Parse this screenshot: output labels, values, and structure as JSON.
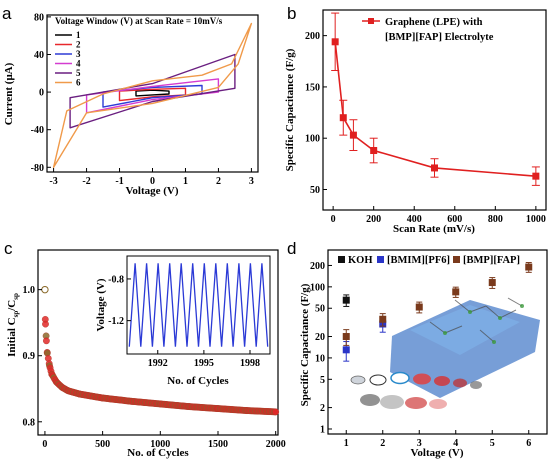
{
  "panels": {
    "a": "a",
    "b": "b",
    "c": "c",
    "d": "d"
  },
  "chart_data": [
    {
      "type": "line",
      "panel": "a",
      "title": "Voltage Window (V) at Scan Rate = 10mV/s",
      "xlabel": "Voltage (V)",
      "ylabel": "Current (μA)",
      "xlim": [
        -3.2,
        3.2
      ],
      "ylim": [
        -85,
        82
      ],
      "xticks": [
        "-3",
        "-2",
        "-1",
        "0",
        "1",
        "2",
        "3"
      ],
      "yticks": [
        "-80",
        "-40",
        "0",
        "40",
        "80"
      ],
      "legend_position": "top-left",
      "series": [
        {
          "name": "1",
          "color": "#000000",
          "vmin": -0.5,
          "vmax": 0.5,
          "points": [
            [
              -0.5,
              -4
            ],
            [
              0,
              -3
            ],
            [
              0.5,
              -2
            ],
            [
              0.5,
              1
            ],
            [
              0,
              2
            ],
            [
              -0.5,
              1
            ]
          ]
        },
        {
          "name": "2",
          "color": "#e8282c",
          "vmin": -1.0,
          "vmax": 1.0,
          "points": [
            [
              -1,
              -9
            ],
            [
              0,
              -5
            ],
            [
              1,
              -3
            ],
            [
              1,
              4
            ],
            [
              0,
              3
            ],
            [
              -1,
              1
            ]
          ]
        },
        {
          "name": "3",
          "color": "#2e3bd6",
          "vmin": -1.5,
          "vmax": 1.5,
          "points": [
            [
              -1.5,
              -16
            ],
            [
              0,
              -6
            ],
            [
              1.5,
              -2
            ],
            [
              1.5,
              7
            ],
            [
              0,
              5
            ],
            [
              -1.5,
              0
            ]
          ]
        },
        {
          "name": "4",
          "color": "#d43cd0",
          "vmin": -2.0,
          "vmax": 2.0,
          "points": [
            [
              -2,
              -22
            ],
            [
              0,
              -8
            ],
            [
              2,
              0
            ],
            [
              2,
              14
            ],
            [
              0,
              6
            ],
            [
              -2,
              -3
            ]
          ]
        },
        {
          "name": "5",
          "color": "#6a1f80",
          "vmin": -2.5,
          "vmax": 2.5,
          "points": [
            [
              -2.5,
              -38
            ],
            [
              0,
              -10
            ],
            [
              2.5,
              4
            ],
            [
              2.5,
              40
            ],
            [
              0,
              9
            ],
            [
              -2.5,
              -6
            ]
          ]
        },
        {
          "name": "6",
          "color": "#f09a4a",
          "vmin": -3.0,
          "vmax": 3.0,
          "points": [
            [
              -3,
              -80
            ],
            [
              -2,
              -22
            ],
            [
              0,
              -12
            ],
            [
              2,
              5
            ],
            [
              2.6,
              30
            ],
            [
              3,
              73
            ],
            [
              2.4,
              30
            ],
            [
              1.5,
              18
            ],
            [
              0,
              12
            ],
            [
              -1.5,
              -2
            ],
            [
              -2.6,
              -20
            ]
          ]
        }
      ]
    },
    {
      "type": "line",
      "panel": "b",
      "xlabel": "Scan Rate (mV/s)",
      "ylabel": "Specific Capacitance (F/g)",
      "xlim": [
        -50,
        1050
      ],
      "ylim": [
        30,
        225
      ],
      "xticks": [
        "0",
        "200",
        "400",
        "600",
        "800",
        "1000"
      ],
      "yticks": [
        "50",
        "100",
        "150",
        "200"
      ],
      "legend_position": "top-right",
      "color": "#e02020",
      "series": [
        {
          "name": "Graphene (LPE) with [BMP][FAP] Electrolyte",
          "x": [
            10,
            50,
            100,
            200,
            500,
            1000
          ],
          "y": [
            194,
            120,
            103,
            88,
            71,
            63
          ],
          "err": [
            28,
            17,
            15,
            12,
            9,
            9
          ]
        }
      ]
    },
    {
      "type": "scatter",
      "panel": "c",
      "xlabel": "No. of Cycles",
      "ylabel": "Initial Csp/Csp",
      "ylabel_parts": [
        "Initial C",
        "sp",
        "/C",
        "sp"
      ],
      "xlim": [
        -60,
        2020
      ],
      "ylim": [
        0.78,
        1.06
      ],
      "xticks": [
        "0",
        "500",
        "1000",
        "1500",
        "2000"
      ],
      "yticks": [
        "0.8",
        "0.9",
        "1.0"
      ],
      "series": [
        {
          "name": "",
          "x": [
            0,
            3,
            10,
            20,
            40,
            60,
            100,
            150,
            200,
            300,
            500,
            750,
            1000,
            1250,
            1500,
            1750,
            2000
          ],
          "y": [
            1.0,
            0.955,
            0.93,
            0.905,
            0.885,
            0.872,
            0.86,
            0.852,
            0.847,
            0.842,
            0.836,
            0.831,
            0.827,
            0.823,
            0.82,
            0.817,
            0.815
          ]
        }
      ],
      "inset": {
        "type": "line",
        "xlabel": "No. of Cycles",
        "ylabel": "Voltage (V)",
        "xlim": [
          1990,
          1999.3
        ],
        "ylim": [
          -1.52,
          -0.58
        ],
        "xticks": [
          "1992",
          "1995",
          "1998"
        ],
        "yticks": [
          "-0.8",
          "-1.2"
        ],
        "vmin": -1.45,
        "vmax": -0.65,
        "n_cycles": 12,
        "color": "#2b3ad6"
      }
    },
    {
      "type": "scatter",
      "panel": "d",
      "xlabel": "Voltage (V)",
      "ylabel": "Specific Capacitance (F/g)",
      "yscale": "log",
      "xlim": [
        0.5,
        6.5
      ],
      "ylim": [
        0.85,
        330
      ],
      "xticks": [
        "1",
        "2",
        "3",
        "4",
        "5",
        "6"
      ],
      "yticks": [
        "1",
        "2",
        "5",
        "10",
        "20",
        "50",
        "100",
        "200"
      ],
      "legend_position": "top",
      "series": [
        {
          "name": "KOH",
          "color": "#111111",
          "x": [
            1
          ],
          "y": [
            65
          ],
          "err": [
            12
          ]
        },
        {
          "name": "[BMIM][PF6]",
          "color": "#2a35c8",
          "x": [
            1,
            2
          ],
          "y": [
            13,
            30
          ],
          "err": [
            4,
            7
          ]
        },
        {
          "name": "[BMP][FAP]",
          "color": "#7a3a1c",
          "x": [
            1,
            2,
            3,
            4,
            5,
            6
          ],
          "y": [
            20,
            35,
            52,
            85,
            115,
            190
          ],
          "err": [
            5,
            7,
            9,
            14,
            20,
            30
          ]
        }
      ]
    }
  ]
}
